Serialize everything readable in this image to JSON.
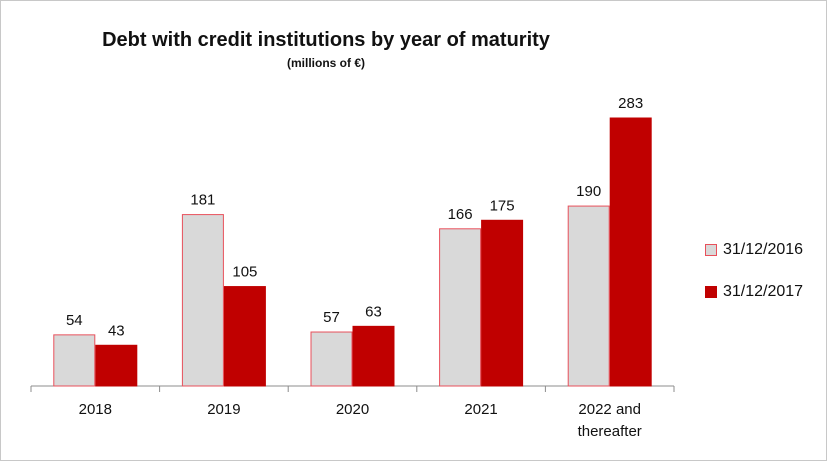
{
  "chart_data": {
    "type": "bar",
    "title": "Debt with credit institutions by year of maturity",
    "subtitle": "(millions of €)",
    "categories": [
      "2018",
      "2019",
      "2020",
      "2021",
      "2022 and thereafter"
    ],
    "series": [
      {
        "name": "31/12/2016",
        "values": [
          54,
          181,
          57,
          166,
          190
        ],
        "fill": "#d9d9d9",
        "stroke": "#e8505b"
      },
      {
        "name": "31/12/2017",
        "values": [
          43,
          105,
          63,
          175,
          283
        ],
        "fill": "#c00000",
        "stroke": "#c00000"
      }
    ],
    "ylim": [
      0,
      300
    ],
    "grid": false,
    "legend": "right"
  }
}
